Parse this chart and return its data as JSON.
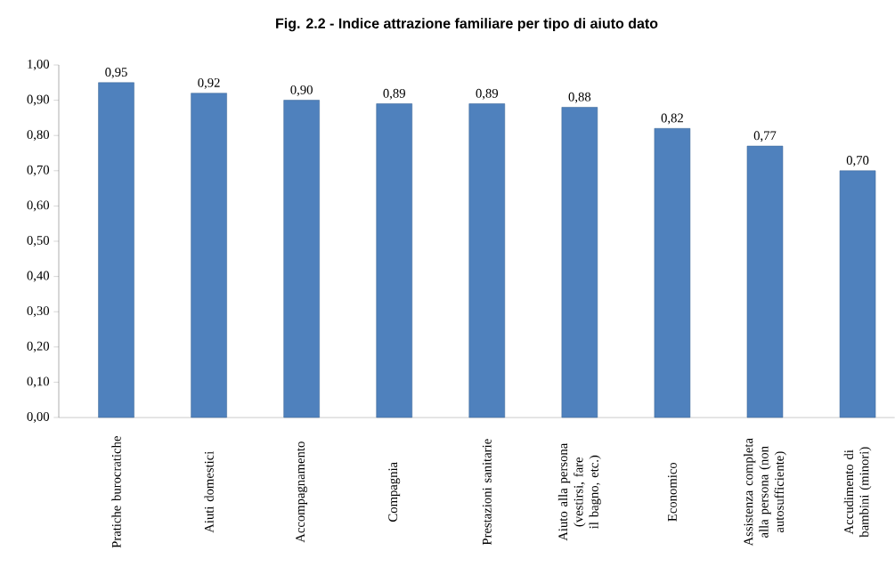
{
  "chart_data": {
    "type": "bar",
    "title": "Fig. 2.2 - Indice attrazione familiare per tipo di aiuto dato",
    "categories": [
      "Pratiche burocratiche",
      "Aiuti domestici",
      "Accompagnamento",
      "Compagnia",
      "Prestazioni sanitarie",
      "Aiuto alla persona (vestirsi, fare il bagno, etc.)",
      "Economico",
      "Assistenza completa alla persona (non autosufficiente)",
      "Accudimento di bambini (minori)"
    ],
    "values": [
      0.95,
      0.92,
      0.9,
      0.89,
      0.89,
      0.88,
      0.82,
      0.77,
      0.7
    ],
    "value_labels": [
      "0,95",
      "0,92",
      "0,90",
      "0,89",
      "0,89",
      "0,88",
      "0,82",
      "0,77",
      "0,70"
    ],
    "color": "#4f81bd",
    "ylim": [
      0,
      1
    ],
    "yticks": [
      {
        "value": 0,
        "label": "0,00"
      },
      {
        "value": 0.1,
        "label": "0,10"
      },
      {
        "value": 0.2,
        "label": "0,20"
      },
      {
        "value": 0.3,
        "label": "0,30"
      },
      {
        "value": 0.4,
        "label": "0,40"
      },
      {
        "value": 0.5,
        "label": "0,50"
      },
      {
        "value": 0.6,
        "label": "0,60"
      },
      {
        "value": 0.7,
        "label": "0,70"
      },
      {
        "value": 0.8,
        "label": "0,80"
      },
      {
        "value": 0.9,
        "label": "0,90"
      },
      {
        "value": 1,
        "label": "1,00"
      }
    ],
    "grid": false
  }
}
